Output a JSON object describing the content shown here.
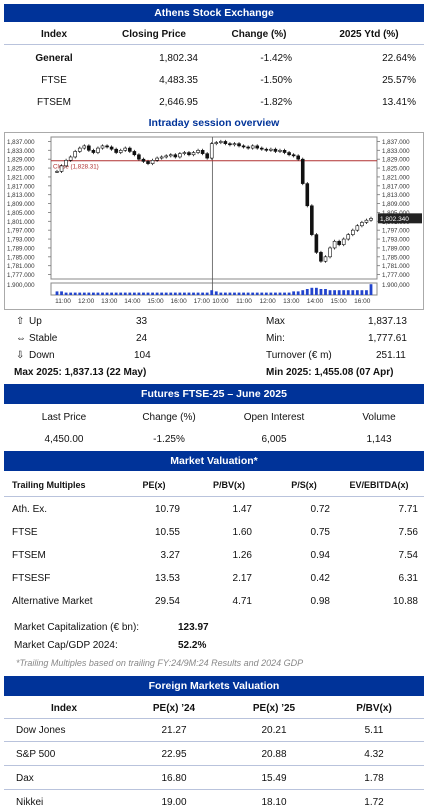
{
  "athens": {
    "title": "Athens Stock Exchange",
    "headers": [
      "Index",
      "Closing Price",
      "Change (%)",
      "2025 Ytd (%)"
    ],
    "rows": [
      {
        "index": "General",
        "close": "1,802.34",
        "change": "-1.42%",
        "ytd": "22.64%"
      },
      {
        "index": "FTSE",
        "close": "4,483.35",
        "change": "-1.50%",
        "ytd": "25.57%"
      },
      {
        "index": "FTSEM",
        "close": "2,646.95",
        "change": "-1.82%",
        "ytd": "13.41%"
      }
    ]
  },
  "intraday": {
    "title": "Intraday session overview",
    "prev_close_label": "Close (1,828.31)",
    "last_price_label": "1,802.340",
    "volume_label": "1.900,000",
    "y_ticks": [
      "1,837.000",
      "1,833.000",
      "1,829.000",
      "1,825.000",
      "1,821.000",
      "1,817.000",
      "1,813.000",
      "1,809.000",
      "1,805.000",
      "1,801.000",
      "1,797.000",
      "1,793.000",
      "1,789.000",
      "1,785.000",
      "1,781.000",
      "1,777.000"
    ],
    "x_ticks": [
      "11:00",
      "12:00",
      "13:00",
      "14:00",
      "15:00",
      "16:00",
      "17:00",
      "10:00",
      "11:00",
      "12:00",
      "13:00",
      "14:00",
      "15:00",
      "16:00"
    ]
  },
  "chart_data": {
    "type": "line",
    "title": "Intraday session overview",
    "ylim": [
      1775,
      1839
    ],
    "y_ticks": [
      1837,
      1833,
      1829,
      1825,
      1821,
      1817,
      1813,
      1809,
      1805,
      1801,
      1797,
      1793,
      1789,
      1785,
      1781,
      1777
    ],
    "prev_close": 1828.31,
    "last": 1802.34,
    "series": [
      {
        "values": [
          1823.5,
          1826,
          1828.5,
          1830,
          1832.5,
          1834,
          1835,
          1833,
          1832,
          1834,
          1835,
          1834.5,
          1833.5,
          1832,
          1833,
          1834,
          1832.5,
          1831,
          1829,
          1828,
          1827,
          1828.5,
          1829.5,
          1830,
          1830.5,
          1831,
          1830,
          1831.5,
          1832,
          1831,
          1832,
          1833,
          1831.5,
          1829.5,
          1836,
          1836.5,
          1837,
          1836,
          1835.5,
          1836,
          1835,
          1834.5,
          1834,
          1835,
          1834,
          1833.5,
          1833,
          1833.5,
          1832.5,
          1833,
          1832,
          1831,
          1830.5,
          1829,
          1818,
          1808,
          1795,
          1787,
          1783,
          1785,
          1789,
          1792,
          1790.5,
          1793,
          1795,
          1797,
          1799,
          1800.5,
          1801.5,
          1802.34
        ]
      }
    ],
    "volume": [
      3,
      3,
      2,
      2,
      2,
      2,
      2,
      2,
      2,
      2,
      2,
      2,
      2,
      2,
      2,
      2,
      2,
      2,
      2,
      2,
      2,
      2,
      2,
      2,
      2,
      2,
      2,
      2,
      2,
      2,
      2,
      2,
      2,
      2,
      4,
      3,
      2,
      2,
      2,
      2,
      2,
      2,
      2,
      2,
      2,
      2,
      2,
      2,
      2,
      2,
      2,
      2,
      3,
      3,
      4,
      5,
      6,
      6,
      5,
      5,
      4,
      4,
      4,
      4,
      4,
      4,
      4,
      4,
      4,
      9
    ]
  },
  "stats": {
    "up_label": "Up",
    "up_value": "33",
    "stable_label": "Stable",
    "stable_value": "24",
    "down_label": "Down",
    "down_value": "104",
    "max_label": "Max",
    "max_value": "1,837.13",
    "min_label": "Min:",
    "min_value": "1,777.61",
    "turnover_label": "Turnover (€ m)",
    "turnover_value": "251.11",
    "max2025": "Max 2025: 1,837.13 (22 May)",
    "min2025": "Min 2025:  1,455.08 (07 Apr)"
  },
  "futures": {
    "title": "Futures FTSE-25 – June 2025",
    "headers": [
      "Last Price",
      "Change (%)",
      "Open Interest",
      "Volume"
    ],
    "values": [
      "4,450.00",
      "-1.25%",
      "6,005",
      "1,143"
    ]
  },
  "valuation": {
    "title": "Market Valuation*",
    "headers": [
      "Trailing Multiples",
      "PE(x)",
      "P/BV(x)",
      "P/S(x)",
      "EV/EBITDA(x)"
    ],
    "rows": [
      {
        "name": "Ath. Ex.",
        "pe": "10.79",
        "pbv": "1.47",
        "ps": "0.72",
        "ev": "7.71"
      },
      {
        "name": "FTSE",
        "pe": "10.55",
        "pbv": "1.60",
        "ps": "0.75",
        "ev": "7.56"
      },
      {
        "name": "FTSEM",
        "pe": "3.27",
        "pbv": "1.26",
        "ps": "0.94",
        "ev": "7.54"
      },
      {
        "name": "FTSESF",
        "pe": "13.53",
        "pbv": "2.17",
        "ps": "0.42",
        "ev": "6.31"
      },
      {
        "name": "Alternative Market",
        "pe": "29.54",
        "pbv": "4.71",
        "ps": "0.98",
        "ev": "10.88"
      }
    ],
    "mcap_label": "Market Capitalization (€ bn):",
    "mcap_value": "123.97",
    "gdp_label": "Market Cap/GDP 2024:",
    "gdp_value": "52.2%",
    "note": "*Trailing Multiples based on trailing FY:24/9M:24 Results and 2024 GDP"
  },
  "foreign": {
    "title": "Foreign Markets Valuation",
    "headers": [
      "Index",
      "PE(x) ’24",
      "PE(x) ’25",
      "P/BV(x)"
    ],
    "rows": [
      {
        "index": "Dow Jones",
        "pe24": "21.27",
        "pe25": "20.21",
        "pbv": "5.11"
      },
      {
        "index": "S&P 500",
        "pe24": "22.95",
        "pe25": "20.88",
        "pbv": "4.32"
      },
      {
        "index": "Dax",
        "pe24": "16.80",
        "pe25": "15.49",
        "pbv": "1.78"
      },
      {
        "index": "Nikkei",
        "pe24": "19.00",
        "pe25": "18.10",
        "pbv": "1.72"
      }
    ]
  },
  "colors": {
    "header_bg": "#003399",
    "prev_close_line": "#b03030",
    "volume_bar": "#2244cc",
    "divider": "#b9c3dc"
  }
}
